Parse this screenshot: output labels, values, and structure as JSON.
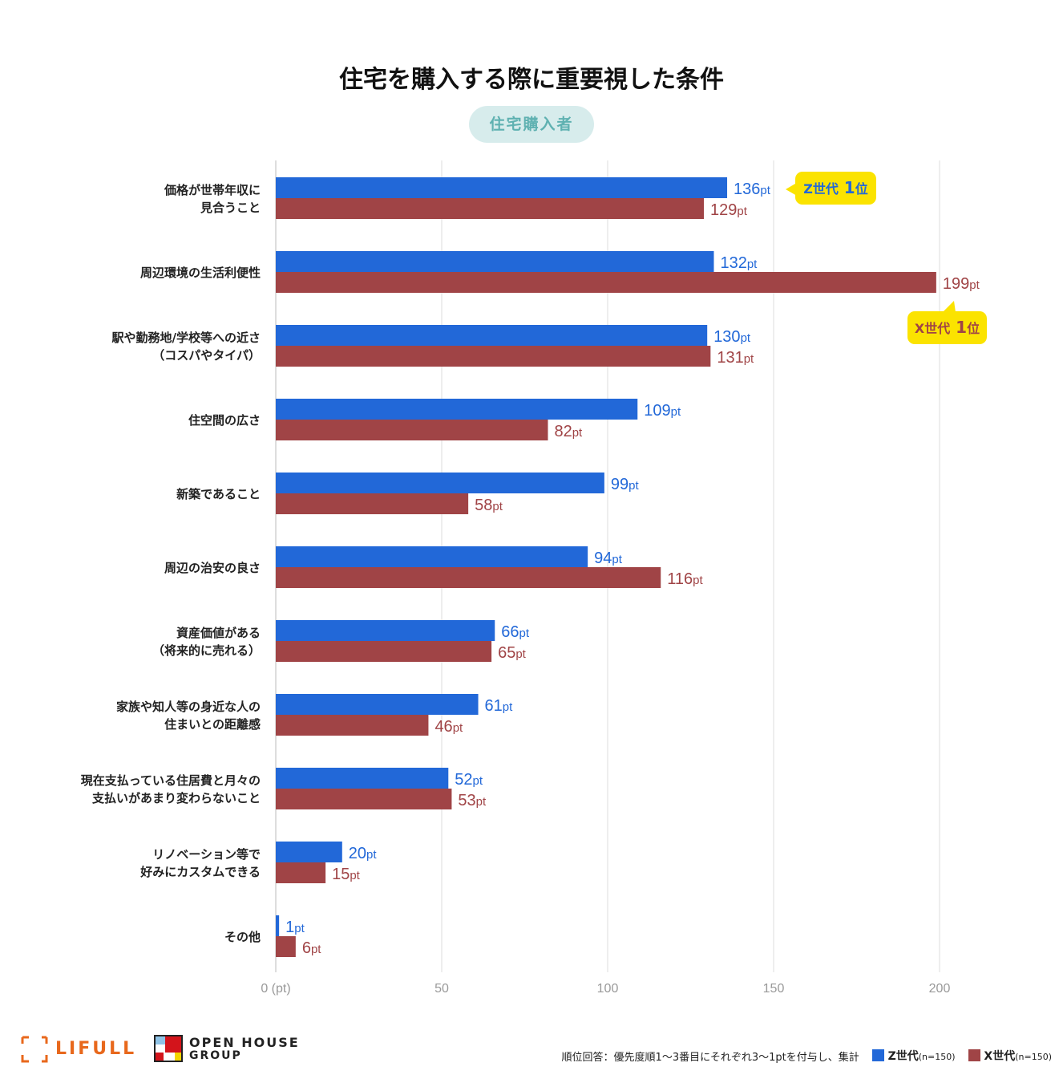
{
  "chart_data": {
    "type": "bar",
    "orientation": "horizontal",
    "title": "住宅を購入する際に重要視した条件",
    "subtitle": "住宅購入者",
    "categories": [
      [
        "価格が世帯年収に",
        "見合うこと"
      ],
      [
        "周辺環境の生活利便性"
      ],
      [
        "駅や勤務地/学校等への近さ",
        "（コスパやタイパ）"
      ],
      [
        "住空間の広さ"
      ],
      [
        "新築であること"
      ],
      [
        "周辺の治安の良さ"
      ],
      [
        "資産価値がある",
        "（将来的に売れる）"
      ],
      [
        "家族や知人等の身近な人の",
        "住まいとの距離感"
      ],
      [
        "現在支払っている住居費と月々の",
        "支払いがあまり変わらないこと"
      ],
      [
        "リノベーション等で",
        "好みにカスタムできる"
      ],
      [
        "その他"
      ]
    ],
    "series": [
      {
        "name": "Z世代",
        "n": "(n=150)",
        "color": "#2268d8",
        "values": [
          136,
          132,
          130,
          109,
          99,
          94,
          66,
          61,
          52,
          20,
          1
        ]
      },
      {
        "name": "X世代",
        "n": "(n=150)",
        "color": "#a04446",
        "values": [
          129,
          199,
          131,
          82,
          58,
          116,
          65,
          46,
          53,
          15,
          6
        ]
      }
    ],
    "value_suffix": "pt",
    "xlim": [
      0,
      200
    ],
    "xticks": [
      "0 (pt)",
      "50",
      "100",
      "150",
      "200"
    ],
    "xtick_values": [
      0,
      50,
      100,
      150,
      200
    ],
    "grid": true,
    "annotations": [
      {
        "text_prefix": "Z世代",
        "rank": "1",
        "text_suffix": "位",
        "category_index": 0,
        "series": 0
      },
      {
        "text_prefix": "X世代",
        "rank": "1",
        "text_suffix": "位",
        "category_index": 1,
        "series": 1
      }
    ],
    "note": "順位回答：優先度順1〜3番目にそれぞれ3〜1ptを付与し、集計",
    "legend_position": "bottom-right"
  },
  "logos": {
    "lifull": "LIFULL",
    "openhouse_1": "OPEN HOUSE",
    "openhouse_2": "GROUP"
  }
}
